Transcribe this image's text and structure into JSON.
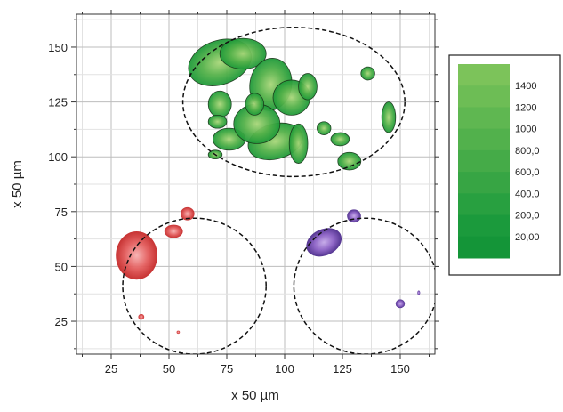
{
  "chart_data": {
    "type": "heatmap",
    "title": "",
    "xlabel": "x 50 µm",
    "ylabel": "x 50 µm",
    "xlim": [
      10,
      165
    ],
    "ylim": [
      10,
      165
    ],
    "x_ticks": [
      25,
      50,
      75,
      100,
      125,
      150
    ],
    "y_ticks": [
      25,
      50,
      75,
      100,
      125,
      150
    ],
    "x_tick_labels": [
      "25",
      "50",
      "75",
      "100",
      "125",
      "150"
    ],
    "y_tick_labels": [
      "25",
      "50",
      "75",
      "100",
      "125",
      "150"
    ],
    "grid": true,
    "legend": {
      "placement": "right",
      "labels": [
        "1400",
        "1200",
        "1000",
        "800,0",
        "600,0",
        "400,0",
        "200,0",
        "20,00"
      ]
    },
    "regions": [
      {
        "name": "green",
        "color": "#3aa33a",
        "circle": {
          "cx": 104,
          "cy": 125,
          "rx": 48,
          "ry": 34
        }
      },
      {
        "name": "red",
        "color": "#d43a3a",
        "circle": {
          "cx": 61,
          "cy": 41,
          "r": 31
        }
      },
      {
        "name": "purple",
        "color": "#6a3fa6",
        "circle": {
          "cx": 135,
          "cy": 41,
          "r": 31
        }
      }
    ],
    "blobs": [
      {
        "region": "green",
        "x": 72,
        "y": 143,
        "rx": 14,
        "ry": 10,
        "rot": -20
      },
      {
        "region": "green",
        "x": 82,
        "y": 147,
        "rx": 10,
        "ry": 7,
        "rot": 0
      },
      {
        "region": "green",
        "x": 72,
        "y": 124,
        "rx": 5,
        "ry": 6,
        "rot": 0
      },
      {
        "region": "green",
        "x": 76,
        "y": 108,
        "rx": 7,
        "ry": 5,
        "rot": 0
      },
      {
        "region": "green",
        "x": 94,
        "y": 133,
        "rx": 9,
        "ry": 12,
        "rot": 10
      },
      {
        "region": "green",
        "x": 103,
        "y": 127,
        "rx": 8,
        "ry": 8,
        "rot": 0
      },
      {
        "region": "green",
        "x": 96,
        "y": 107,
        "rx": 12,
        "ry": 8,
        "rot": -15
      },
      {
        "region": "green",
        "x": 88,
        "y": 115,
        "rx": 10,
        "ry": 9,
        "rot": 0
      },
      {
        "region": "green",
        "x": 106,
        "y": 106,
        "rx": 4,
        "ry": 9,
        "rot": 0
      },
      {
        "region": "green",
        "x": 87,
        "y": 124,
        "rx": 4,
        "ry": 5,
        "rot": 0
      },
      {
        "region": "green",
        "x": 110,
        "y": 132,
        "rx": 4,
        "ry": 6,
        "rot": 0
      },
      {
        "region": "green",
        "x": 124,
        "y": 108,
        "rx": 4,
        "ry": 3,
        "rot": 0
      },
      {
        "region": "green",
        "x": 128,
        "y": 98,
        "rx": 5,
        "ry": 4,
        "rot": 0
      },
      {
        "region": "green",
        "x": 145,
        "y": 118,
        "rx": 3,
        "ry": 7,
        "rot": 0
      },
      {
        "region": "green",
        "x": 136,
        "y": 138,
        "rx": 3,
        "ry": 3,
        "rot": 0
      },
      {
        "region": "green",
        "x": 117,
        "y": 113,
        "rx": 3,
        "ry": 3,
        "rot": 0
      },
      {
        "region": "green",
        "x": 71,
        "y": 116,
        "rx": 4,
        "ry": 3,
        "rot": 0
      },
      {
        "region": "green",
        "x": 70,
        "y": 101,
        "rx": 3,
        "ry": 2,
        "rot": 0
      },
      {
        "region": "red",
        "x": 36,
        "y": 55,
        "rx": 9,
        "ry": 11,
        "rot": 0
      },
      {
        "region": "red",
        "x": 52,
        "y": 66,
        "rx": 4,
        "ry": 3,
        "rot": 0
      },
      {
        "region": "red",
        "x": 58,
        "y": 74,
        "rx": 3,
        "ry": 3,
        "rot": 0
      },
      {
        "region": "red",
        "x": 38,
        "y": 27,
        "rx": 1.3,
        "ry": 1.3,
        "rot": 0
      },
      {
        "region": "red",
        "x": 54,
        "y": 20,
        "rx": 0.7,
        "ry": 0.7,
        "rot": 0
      },
      {
        "region": "purple",
        "x": 117,
        "y": 61,
        "rx": 8,
        "ry": 6,
        "rot": -25
      },
      {
        "region": "purple",
        "x": 130,
        "y": 73,
        "rx": 3,
        "ry": 3,
        "rot": 0
      },
      {
        "region": "purple",
        "x": 150,
        "y": 33,
        "rx": 2,
        "ry": 2,
        "rot": 0
      },
      {
        "region": "purple",
        "x": 158,
        "y": 38,
        "rx": 0.6,
        "ry": 1,
        "rot": 0
      }
    ]
  }
}
